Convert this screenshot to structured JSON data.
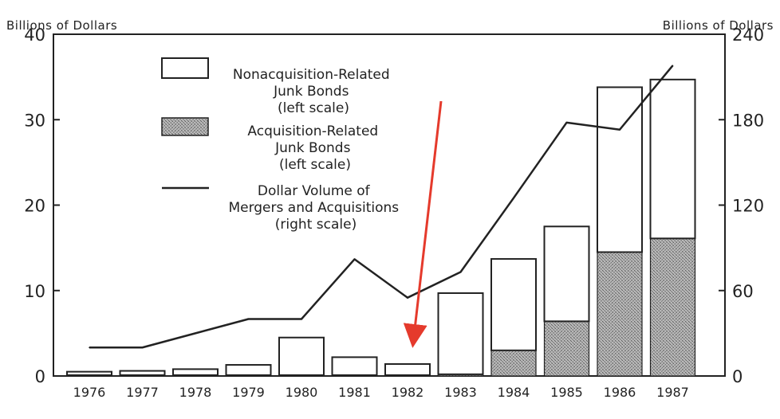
{
  "chart_data": {
    "type": "bar",
    "left_axis_label": "Billions of Dollars",
    "right_axis_label": "Billions of Dollars",
    "categories": [
      "1976",
      "1977",
      "1978",
      "1979",
      "1980",
      "1981",
      "1982",
      "1983",
      "1984",
      "1985",
      "1986",
      "1987"
    ],
    "left_ylim": [
      0,
      40
    ],
    "left_yticks": [
      "0",
      "10",
      "20",
      "30",
      "40"
    ],
    "right_ylim": [
      0,
      240
    ],
    "right_yticks": [
      "0",
      "60",
      "120",
      "180",
      "240"
    ],
    "series": [
      {
        "name_lines": [
          "Nonacquisition-Related",
          "Junk Bonds",
          "(left scale)"
        ],
        "kind": "bar",
        "axis": "left",
        "values": [
          0.4,
          0.5,
          0.7,
          1.2,
          4.4,
          2.1,
          1.3,
          9.5,
          10.7,
          11.1,
          19.3,
          18.6
        ]
      },
      {
        "name_lines": [
          "Acquisition-Related",
          "Junk Bonds",
          "(left scale)"
        ],
        "kind": "bar",
        "axis": "left",
        "values": [
          0.1,
          0.1,
          0.1,
          0.1,
          0.1,
          0.1,
          0.1,
          0.2,
          3.0,
          6.4,
          14.5,
          16.1
        ]
      },
      {
        "name_lines": [
          "Dollar Volume of",
          "Mergers and Acquisitions",
          "(right scale)"
        ],
        "kind": "line",
        "axis": "right",
        "values": [
          20,
          20,
          30,
          40,
          40,
          82,
          55,
          73,
          125,
          178,
          173,
          218
        ]
      }
    ],
    "grid": false,
    "legend_position": "top-left inside plot",
    "colors": {
      "bar_outline": "#222222",
      "bar_fill": "#ffffff",
      "stipple_fill": "#9a9a9a",
      "line": "#222222",
      "arrow": "#e53a2c"
    }
  },
  "annotation": {
    "type": "arrow",
    "points_to": "1982",
    "color": "#e53a2c"
  }
}
